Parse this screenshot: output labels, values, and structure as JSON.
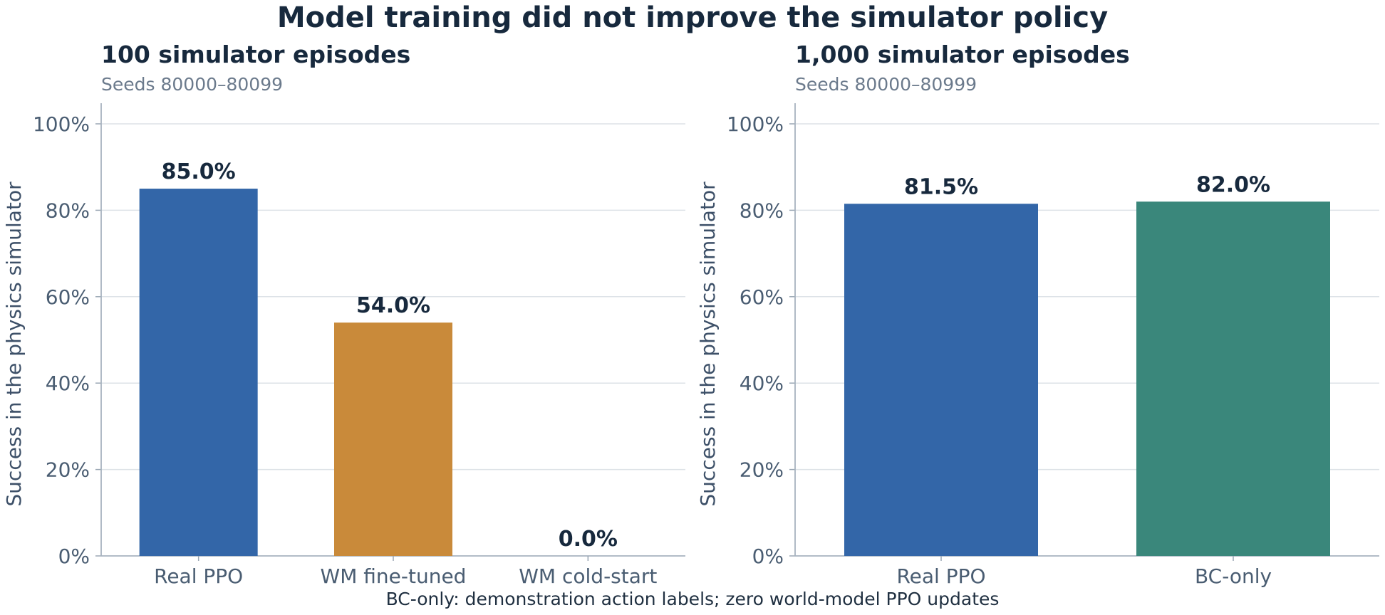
{
  "figure": {
    "title": "Model training did not improve the simulator policy",
    "footnote": "BC-only: demonstration action labels; zero world-model PPO updates"
  },
  "chart_data": [
    {
      "type": "bar",
      "title": "100 simulator episodes",
      "subtitle": "Seeds 80000–80099",
      "ylabel": "Success in the physics simulator",
      "ylim": [
        0,
        100
      ],
      "yticks": [
        0,
        20,
        40,
        60,
        80,
        100
      ],
      "ytick_labels": [
        "0%",
        "20%",
        "40%",
        "60%",
        "80%",
        "100%"
      ],
      "grid": true,
      "categories": [
        "Real PPO",
        "WM fine-tuned",
        "WM cold-start"
      ],
      "values": [
        85.0,
        54.0,
        0.0
      ],
      "value_labels": [
        "85.0%",
        "54.0%",
        "0.0%"
      ],
      "colors": [
        "#3366a8",
        "#c98a3a",
        "#9aa4ae"
      ]
    },
    {
      "type": "bar",
      "title": "1,000 simulator episodes",
      "subtitle": "Seeds 80000–80999",
      "ylabel": "Success in the physics simulator",
      "ylim": [
        0,
        100
      ],
      "yticks": [
        0,
        20,
        40,
        60,
        80,
        100
      ],
      "ytick_labels": [
        "0%",
        "20%",
        "40%",
        "60%",
        "80%",
        "100%"
      ],
      "grid": true,
      "categories": [
        "Real PPO",
        "BC-only"
      ],
      "values": [
        81.5,
        82.0
      ],
      "value_labels": [
        "81.5%",
        "82.0%"
      ],
      "colors": [
        "#3366a8",
        "#3a877b"
      ]
    }
  ]
}
